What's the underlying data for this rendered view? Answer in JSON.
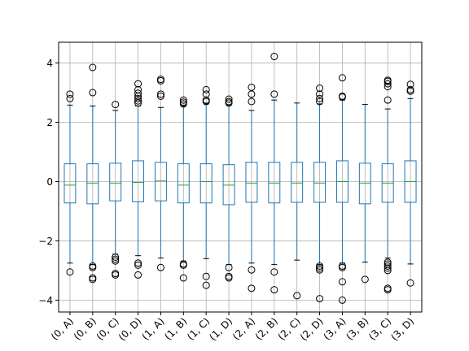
{
  "chart_data": {
    "type": "box",
    "title": "",
    "xlabel": "",
    "ylabel": "",
    "ylim": [
      -4.4,
      4.7
    ],
    "grid": true,
    "yticks": [
      -4,
      -2,
      0,
      2,
      4
    ],
    "ytick_labels": [
      "−4",
      "−2",
      "0",
      "2",
      "4"
    ],
    "colors": {
      "box": "#1f77b4",
      "median": "#2ca02c",
      "grid": "#b0b0b0",
      "outlier": "#000000",
      "axes": "#000000"
    },
    "categories": [
      "(0, A)",
      "(0, B)",
      "(0, C)",
      "(0, D)",
      "(1, A)",
      "(1, B)",
      "(1, C)",
      "(1, D)",
      "(2, A)",
      "(2, B)",
      "(2, C)",
      "(2, D)",
      "(3, A)",
      "(3, B)",
      "(3, C)",
      "(3, D)"
    ],
    "boxes": [
      {
        "label": "(0, A)",
        "q1": -0.72,
        "median": -0.12,
        "q3": 0.6,
        "whisker_low": -2.75,
        "whisker_high": 2.58,
        "outliers": [
          -3.05,
          2.8,
          2.95
        ]
      },
      {
        "label": "(0, B)",
        "q1": -0.75,
        "median": -0.05,
        "q3": 0.6,
        "whisker_low": -2.8,
        "whisker_high": 2.55,
        "outliers": [
          -2.85,
          -2.9,
          -3.25,
          -3.3,
          3.0,
          3.85
        ]
      },
      {
        "label": "(0, C)",
        "q1": -0.65,
        "median": -0.05,
        "q3": 0.62,
        "whisker_low": -2.45,
        "whisker_high": 2.4,
        "outliers": [
          -2.55,
          -2.62,
          -2.68,
          -3.1,
          -3.15,
          2.6
        ]
      },
      {
        "label": "(0, D)",
        "q1": -0.68,
        "median": -0.03,
        "q3": 0.7,
        "whisker_low": -2.5,
        "whisker_high": 2.55,
        "outliers": [
          -2.75,
          -2.82,
          -3.15,
          2.65,
          2.72,
          2.8,
          2.88,
          2.98,
          3.1,
          3.3
        ]
      },
      {
        "label": "(1, A)",
        "q1": -0.65,
        "median": 0.02,
        "q3": 0.65,
        "whisker_low": -2.58,
        "whisker_high": 2.5,
        "outliers": [
          -2.9,
          2.88,
          2.95,
          3.4,
          3.45
        ]
      },
      {
        "label": "(1, B)",
        "q1": -0.72,
        "median": -0.12,
        "q3": 0.6,
        "whisker_low": -2.68,
        "whisker_high": 2.55,
        "outliers": [
          -2.78,
          -2.82,
          -3.25,
          2.62,
          2.68,
          2.75
        ]
      },
      {
        "label": "(1, C)",
        "q1": -0.72,
        "median": 0.0,
        "q3": 0.6,
        "whisker_low": -2.6,
        "whisker_high": 2.62,
        "outliers": [
          -3.2,
          -3.5,
          2.7,
          2.75,
          2.95,
          3.1
        ]
      },
      {
        "label": "(1, D)",
        "q1": -0.78,
        "median": -0.12,
        "q3": 0.57,
        "whisker_low": -2.8,
        "whisker_high": 2.58,
        "outliers": [
          -2.9,
          -3.2,
          -3.25,
          2.65,
          2.7,
          2.78
        ]
      },
      {
        "label": "(2, A)",
        "q1": -0.7,
        "median": -0.05,
        "q3": 0.65,
        "whisker_low": -2.75,
        "whisker_high": 2.4,
        "outliers": [
          -2.98,
          -3.6,
          2.7,
          2.95,
          3.18
        ]
      },
      {
        "label": "(2, B)",
        "q1": -0.72,
        "median": -0.05,
        "q3": 0.65,
        "whisker_low": -2.8,
        "whisker_high": 2.75,
        "outliers": [
          -3.05,
          -3.65,
          2.95,
          4.22
        ]
      },
      {
        "label": "(2, C)",
        "q1": -0.7,
        "median": -0.05,
        "q3": 0.65,
        "whisker_low": -2.65,
        "whisker_high": 2.65,
        "outliers": [
          -3.85
        ]
      },
      {
        "label": "(2, D)",
        "q1": -0.7,
        "median": -0.05,
        "q3": 0.65,
        "whisker_low": -2.8,
        "whisker_high": 2.62,
        "outliers": [
          -2.85,
          -2.92,
          -2.98,
          -3.95,
          2.7,
          2.8,
          2.95,
          3.15
        ]
      },
      {
        "label": "(3, A)",
        "q1": -0.7,
        "median": 0.0,
        "q3": 0.7,
        "whisker_low": -2.75,
        "whisker_high": 2.75,
        "outliers": [
          -2.85,
          -2.9,
          -3.38,
          -4.0,
          2.85,
          2.88,
          3.5
        ]
      },
      {
        "label": "(3, B)",
        "q1": -0.75,
        "median": -0.05,
        "q3": 0.62,
        "whisker_low": -2.72,
        "whisker_high": 2.6,
        "outliers": [
          -3.3
        ]
      },
      {
        "label": "(3, C)",
        "q1": -0.7,
        "median": -0.05,
        "q3": 0.6,
        "whisker_low": -2.58,
        "whisker_high": 2.45,
        "outliers": [
          -2.72,
          -2.78,
          -2.85,
          -2.92,
          -3.0,
          -3.6,
          -3.65,
          2.75,
          3.2,
          3.3,
          3.38,
          3.42
        ]
      },
      {
        "label": "(3, D)",
        "q1": -0.7,
        "median": 0.0,
        "q3": 0.7,
        "whisker_low": -2.78,
        "whisker_high": 2.8,
        "outliers": [
          -3.42,
          3.05,
          3.1,
          3.28
        ]
      }
    ]
  }
}
